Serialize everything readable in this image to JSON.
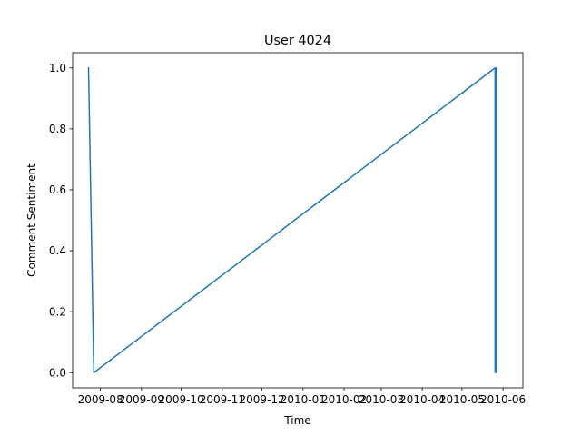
{
  "chart_data": {
    "type": "line",
    "title": "User 4024",
    "xlabel": "Time",
    "ylabel": "Comment Sentiment",
    "x_axis_type": "date",
    "xlim": [
      "2009-07-11",
      "2010-06-16"
    ],
    "ylim": [
      -0.05,
      1.05
    ],
    "x_ticks": [
      "2009-08-01",
      "2009-09-01",
      "2009-10-01",
      "2009-11-01",
      "2009-12-01",
      "2010-01-01",
      "2010-02-01",
      "2010-03-01",
      "2010-04-01",
      "2010-05-01",
      "2010-06-01"
    ],
    "x_tick_labels": [
      "2009-08",
      "2009-09",
      "2009-10",
      "2009-11",
      "2009-12",
      "2010-01",
      "2010-02",
      "2010-03",
      "2010-04",
      "2010-05",
      "2010-06"
    ],
    "y_ticks": [
      0.0,
      0.2,
      0.4,
      0.6,
      0.8,
      1.0
    ],
    "y_tick_labels": [
      "0.0",
      "0.2",
      "0.4",
      "0.6",
      "0.8",
      "1.0"
    ],
    "grid": false,
    "legend": "none",
    "series": [
      {
        "color": "#1f77b4",
        "points": [
          {
            "x": "2009-07-23",
            "y": 1.0
          },
          {
            "x": "2009-07-27",
            "y": 0.0
          },
          {
            "x": "2010-05-26",
            "y": 1.0
          },
          {
            "x": "2010-05-26",
            "y": 0.0
          },
          {
            "x": "2010-05-27",
            "y": 1.0
          },
          {
            "x": "2010-05-27",
            "y": 0.0
          }
        ]
      }
    ]
  }
}
